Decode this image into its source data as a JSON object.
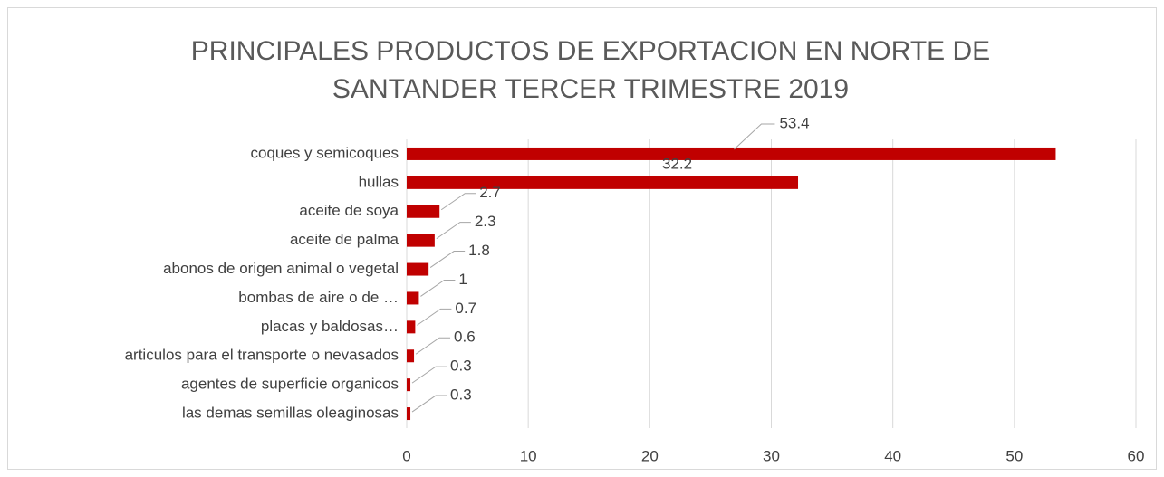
{
  "chart_data": {
    "type": "bar",
    "orientation": "horizontal",
    "title": "PRINCIPALES PRODUCTOS DE EXPORTACION EN NORTE DE SANTANDER TERCER TRIMESTRE 2019",
    "categories": [
      "coques y semicoques",
      "hullas",
      "aceite de soya",
      "aceite de palma",
      "abonos de origen animal o vegetal",
      "bombas de aire o de …",
      "placas y baldosas…",
      "articulos para el transporte o nevasados",
      "agentes de superficie organicos",
      "las demas semillas oleaginosas"
    ],
    "values": [
      53.4,
      32.2,
      2.7,
      2.3,
      1.8,
      1,
      0.7,
      0.6,
      0.3,
      0.3
    ],
    "color": "#c00000",
    "xlim": [
      0,
      60
    ],
    "xticks": [
      0,
      10,
      20,
      30,
      40,
      50,
      60
    ],
    "grid": true
  }
}
